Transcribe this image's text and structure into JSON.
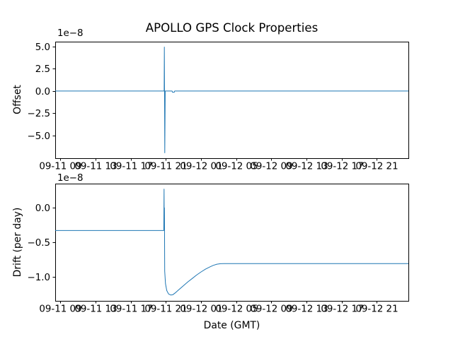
{
  "chart_data": [
    {
      "type": "line",
      "title": "APOLLO GPS Clock Properties",
      "ylabel": "Offset",
      "scale_label": "1e−8",
      "line_color": "#1f77b4",
      "axis_color": "#000000",
      "grid": false,
      "legend": null,
      "x_unit": "hours since 09-11 00:00 GMT",
      "xlim": [
        8.4,
        48.6
      ],
      "ylim": [
        -7.55,
        5.55
      ],
      "xticks": [
        {
          "v": 9,
          "label": "09-11 09"
        },
        {
          "v": 13,
          "label": "09-11 13"
        },
        {
          "v": 17,
          "label": "09-11 17"
        },
        {
          "v": 21,
          "label": "09-11 21"
        },
        {
          "v": 25,
          "label": "09-12 01"
        },
        {
          "v": 29,
          "label": "09-12 05"
        },
        {
          "v": 33,
          "label": "09-12 09"
        },
        {
          "v": 37,
          "label": "09-12 13"
        },
        {
          "v": 41,
          "label": "09-12 17"
        },
        {
          "v": 45,
          "label": "09-12 21"
        }
      ],
      "yticks": [
        {
          "v": 5.0,
          "label": "5.0"
        },
        {
          "v": 2.5,
          "label": "2.5"
        },
        {
          "v": 0.0,
          "label": "0.0"
        },
        {
          "v": -2.5,
          "label": "−2.5"
        },
        {
          "v": -5.0,
          "label": "−5.0"
        }
      ],
      "series": [
        {
          "name": "offset",
          "points": [
            [
              8.4,
              0
            ],
            [
              20.8,
              0
            ],
            [
              20.82,
              4.95
            ],
            [
              20.87,
              -6.95
            ],
            [
              20.92,
              0
            ],
            [
              21.7,
              0
            ],
            [
              21.74,
              -0.13
            ],
            [
              21.96,
              -0.13
            ],
            [
              22.0,
              0
            ],
            [
              48.6,
              0
            ]
          ]
        }
      ]
    },
    {
      "type": "line",
      "xlabel": "Date (GMT)",
      "ylabel": "Drift (per day)",
      "scale_label": "1e−8",
      "line_color": "#1f77b4",
      "axis_color": "#000000",
      "grid": false,
      "legend": null,
      "x_unit": "hours since 09-11 00:00 GMT",
      "xlim": [
        8.4,
        48.6
      ],
      "ylim": [
        -1.35,
        0.35
      ],
      "xticks": [
        {
          "v": 9,
          "label": "09-11 09"
        },
        {
          "v": 13,
          "label": "09-11 13"
        },
        {
          "v": 17,
          "label": "09-11 17"
        },
        {
          "v": 21,
          "label": "09-11 21"
        },
        {
          "v": 25,
          "label": "09-12 01"
        },
        {
          "v": 29,
          "label": "09-12 05"
        },
        {
          "v": 33,
          "label": "09-12 09"
        },
        {
          "v": 37,
          "label": "09-12 13"
        },
        {
          "v": 41,
          "label": "09-12 17"
        },
        {
          "v": 45,
          "label": "09-12 21"
        }
      ],
      "yticks": [
        {
          "v": 0.0,
          "label": "0.0"
        },
        {
          "v": -0.5,
          "label": "−0.5"
        },
        {
          "v": -1.0,
          "label": "−1.0"
        }
      ],
      "series": [
        {
          "name": "drift",
          "points": [
            [
              8.4,
              -0.33
            ],
            [
              20.76,
              -0.33
            ],
            [
              20.79,
              0.27
            ],
            [
              20.81,
              -0.3
            ],
            [
              20.83,
              0.0
            ],
            [
              20.86,
              -0.92
            ],
            [
              20.95,
              -1.1
            ],
            [
              21.1,
              -1.2
            ],
            [
              21.3,
              -1.25
            ],
            [
              21.55,
              -1.265
            ],
            [
              21.8,
              -1.26
            ],
            [
              22.1,
              -1.23
            ],
            [
              22.5,
              -1.185
            ],
            [
              23.0,
              -1.13
            ],
            [
              23.5,
              -1.075
            ],
            [
              24.0,
              -1.025
            ],
            [
              24.5,
              -0.975
            ],
            [
              25.0,
              -0.93
            ],
            [
              25.5,
              -0.89
            ],
            [
              26.0,
              -0.857
            ],
            [
              26.4,
              -0.835
            ],
            [
              26.8,
              -0.818
            ],
            [
              27.2,
              -0.811
            ],
            [
              27.6,
              -0.81
            ],
            [
              48.6,
              -0.81
            ]
          ]
        }
      ]
    }
  ]
}
